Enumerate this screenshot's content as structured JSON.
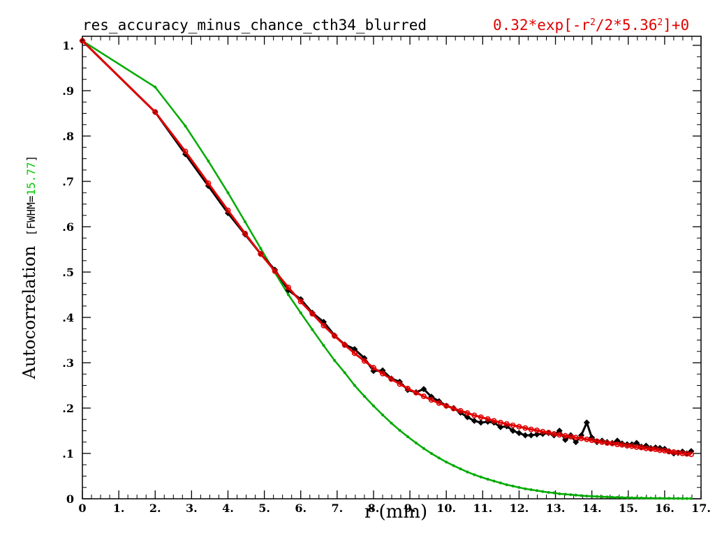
{
  "chart_data": {
    "type": "line",
    "title": "res_accuracy_minus_chance_cth34_blurred",
    "formula": {
      "coef": "0.32*exp[-r",
      "sup1": "2",
      "mid": "/2*5.36",
      "sup2": "2",
      "tail": "]+0"
    },
    "xlabel": "r (mm)",
    "ylabel": {
      "main": "Autocorrelation",
      "fwhm_open": "[FWHM=",
      "fwhm_value": "15.77",
      "fwhm_close": "]"
    },
    "xlim": [
      0,
      17
    ],
    "ylim": [
      0,
      1.02
    ],
    "x_ticks": [
      0,
      1,
      2,
      3,
      4,
      5,
      6,
      7,
      8,
      9,
      10,
      11,
      12,
      13,
      14,
      15,
      16,
      17
    ],
    "x_tick_labels": [
      "0",
      "1.",
      "2.",
      "3.",
      "4.",
      "5.",
      "6.",
      "7.",
      "8.",
      "9.",
      "10.",
      "11.",
      "12.",
      "13.",
      "14.",
      "15.",
      "16.",
      "17."
    ],
    "y_ticks": [
      0,
      0.1,
      0.2,
      0.3,
      0.4,
      0.5,
      0.6,
      0.7,
      0.8,
      0.9,
      1.0
    ],
    "y_tick_labels": [
      "0",
      ".1",
      ".2",
      ".3",
      ".4",
      ".5",
      ".6",
      ".7",
      ".8",
      ".9",
      "1."
    ],
    "grid": false,
    "colors": {
      "empirical": "#000000",
      "fit": "#e00000",
      "gaussian": "#00aa00",
      "fwhm": "#00cc00"
    },
    "series": [
      {
        "key": "empirical",
        "marker": "diamond",
        "x": [
          0,
          2.0,
          2.83,
          3.46,
          4.0,
          4.47,
          4.9,
          5.29,
          5.66,
          6.0,
          6.32,
          6.63,
          6.93,
          7.21,
          7.48,
          7.75,
          8.0,
          8.25,
          8.49,
          8.72,
          8.94,
          9.17,
          9.38,
          9.59,
          9.8,
          10.0,
          10.2,
          10.39,
          10.58,
          10.77,
          10.95,
          11.14,
          11.31,
          11.49,
          11.66,
          11.83,
          12.0,
          12.17,
          12.33,
          12.49,
          12.65,
          12.81,
          12.96,
          13.11,
          13.27,
          13.42,
          13.56,
          13.71,
          13.86,
          14.0,
          14.14,
          14.28,
          14.42,
          14.56,
          14.7,
          14.83,
          14.97,
          15.1,
          15.23,
          15.36,
          15.49,
          15.62,
          15.75,
          15.87,
          16.0,
          16.12,
          16.25,
          16.37,
          16.49,
          16.61,
          16.73
        ],
        "values": [
          1.01,
          0.853,
          0.76,
          0.69,
          0.63,
          0.583,
          0.54,
          0.505,
          0.46,
          0.44,
          0.41,
          0.39,
          0.36,
          0.34,
          0.33,
          0.31,
          0.282,
          0.283,
          0.265,
          0.258,
          0.24,
          0.235,
          0.242,
          0.225,
          0.215,
          0.205,
          0.2,
          0.19,
          0.18,
          0.172,
          0.168,
          0.17,
          0.168,
          0.158,
          0.16,
          0.15,
          0.145,
          0.14,
          0.14,
          0.142,
          0.143,
          0.145,
          0.14,
          0.15,
          0.13,
          0.14,
          0.125,
          0.14,
          0.168,
          0.135,
          0.125,
          0.128,
          0.125,
          0.123,
          0.128,
          0.122,
          0.12,
          0.12,
          0.123,
          0.115,
          0.117,
          0.112,
          0.113,
          0.112,
          0.11,
          0.105,
          0.1,
          0.101,
          0.104,
          0.1,
          0.105
        ]
      },
      {
        "key": "fit",
        "marker": "circle",
        "x": [
          0,
          2.0,
          2.83,
          3.46,
          4.0,
          4.47,
          4.9,
          5.29,
          5.66,
          6.0,
          6.32,
          6.63,
          6.93,
          7.21,
          7.48,
          7.75,
          8.0,
          8.25,
          8.49,
          8.72,
          8.94,
          9.17,
          9.38,
          9.59,
          9.8,
          10.0,
          10.2,
          10.39,
          10.58,
          10.77,
          10.95,
          11.14,
          11.31,
          11.49,
          11.66,
          11.83,
          12.0,
          12.17,
          12.33,
          12.49,
          12.65,
          12.81,
          12.96,
          13.11,
          13.27,
          13.42,
          13.56,
          13.71,
          13.86,
          14.0,
          14.14,
          14.28,
          14.42,
          14.56,
          14.7,
          14.83,
          14.97,
          15.1,
          15.23,
          15.36,
          15.49,
          15.62,
          15.75,
          15.87,
          16.0,
          16.12,
          16.25,
          16.37,
          16.49,
          16.61,
          16.73
        ],
        "values": [
          1.01,
          0.853,
          0.766,
          0.696,
          0.636,
          0.585,
          0.54,
          0.502,
          0.466,
          0.435,
          0.408,
          0.382,
          0.359,
          0.339,
          0.321,
          0.304,
          0.289,
          0.276,
          0.264,
          0.253,
          0.243,
          0.234,
          0.226,
          0.218,
          0.211,
          0.205,
          0.199,
          0.194,
          0.189,
          0.184,
          0.18,
          0.176,
          0.172,
          0.168,
          0.165,
          0.162,
          0.159,
          0.156,
          0.153,
          0.151,
          0.148,
          0.146,
          0.143,
          0.141,
          0.139,
          0.137,
          0.135,
          0.133,
          0.131,
          0.129,
          0.127,
          0.125,
          0.123,
          0.122,
          0.12,
          0.119,
          0.117,
          0.116,
          0.114,
          0.113,
          0.111,
          0.11,
          0.109,
          0.107,
          0.106,
          0.104,
          0.103,
          0.102,
          0.1,
          0.099,
          0.098
        ]
      },
      {
        "key": "gaussian",
        "marker": "dot",
        "x": [
          0,
          2.0,
          2.83,
          3.46,
          4.0,
          4.47,
          4.9,
          5.29,
          5.66,
          6.0,
          6.32,
          6.63,
          6.93,
          7.21,
          7.48,
          7.75,
          8.0,
          8.25,
          8.49,
          8.72,
          8.94,
          9.17,
          9.38,
          9.59,
          9.8,
          10.0,
          10.2,
          10.39,
          10.58,
          10.77,
          10.95,
          11.14,
          11.31,
          11.49,
          11.66,
          11.83,
          12.0,
          12.17,
          12.33,
          12.49,
          12.65,
          12.81,
          12.96,
          13.11,
          13.27,
          13.42,
          13.56,
          13.71,
          13.86,
          14.0,
          14.14,
          14.28,
          14.42,
          14.56,
          14.7,
          14.83,
          14.97,
          15.1,
          15.23,
          15.36,
          15.49,
          15.62,
          15.75,
          15.87,
          16.0,
          16.12,
          16.25,
          16.37,
          16.49,
          16.61,
          16.73
        ],
        "values": [
          1.01,
          0.908,
          0.822,
          0.745,
          0.675,
          0.611,
          0.552,
          0.499,
          0.45,
          0.41,
          0.373,
          0.338,
          0.305,
          0.278,
          0.25,
          0.226,
          0.205,
          0.185,
          0.167,
          0.151,
          0.137,
          0.123,
          0.111,
          0.1,
          0.09,
          0.081,
          0.073,
          0.066,
          0.059,
          0.053,
          0.048,
          0.043,
          0.039,
          0.035,
          0.031,
          0.028,
          0.025,
          0.022,
          0.02,
          0.018,
          0.016,
          0.014,
          0.013,
          0.011,
          0.01,
          0.009,
          0.008,
          0.007,
          0.006,
          0.0055,
          0.005,
          0.0045,
          0.004,
          0.0035,
          0.003,
          0.0027,
          0.0024,
          0.0021,
          0.0019,
          0.0017,
          0.0015,
          0.0013,
          0.0012,
          0.0011,
          0.001,
          0.0009,
          0.0008,
          0.0007,
          0.0006,
          0.0005,
          0.0005
        ]
      }
    ]
  }
}
